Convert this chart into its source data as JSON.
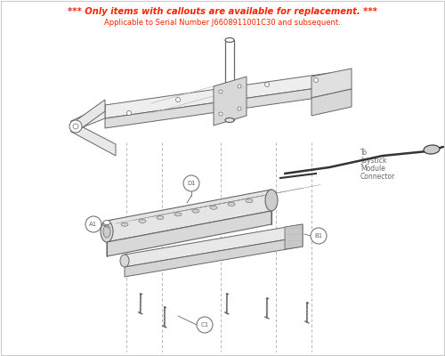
{
  "title_line1": "*** Only items with callouts are available for replacement. ***",
  "title_line2": "Applicable to Serial Number J6608911001C30 and subsequent.",
  "title_color": "#ff2200",
  "subtitle_color": "#ff2200",
  "bg_color": "#ffffff",
  "callouts": [
    "A1",
    "B1",
    "C1",
    "D1"
  ],
  "joystick_label": [
    "To",
    "Joystick",
    "Module",
    "Connector"
  ],
  "gray": "#666666",
  "lgray": "#999999",
  "vlgray": "#bbbbbb",
  "fig_width": 5.0,
  "fig_height": 4.0,
  "dpi": 100
}
